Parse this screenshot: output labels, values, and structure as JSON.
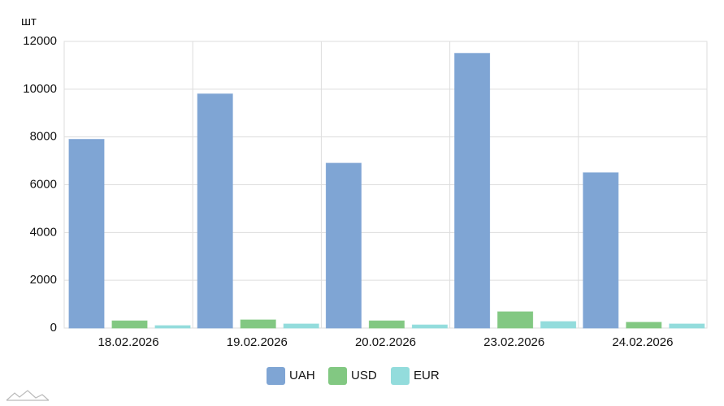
{
  "chart_data": {
    "type": "bar",
    "y_unit": "шт",
    "categories": [
      "18.02.2026",
      "19.02.2026",
      "20.02.2026",
      "23.02.2026",
      "24.02.2026"
    ],
    "series": [
      {
        "name": "UAH",
        "color": "#7fa5d4",
        "values": [
          7900,
          9800,
          6900,
          11500,
          6500
        ]
      },
      {
        "name": "USD",
        "color": "#82c882",
        "values": [
          300,
          340,
          300,
          680,
          240
        ]
      },
      {
        "name": "EUR",
        "color": "#93dcdc",
        "values": [
          100,
          170,
          130,
          270,
          170
        ]
      }
    ],
    "ylim": [
      0,
      12000
    ],
    "yticks": [
      0,
      2000,
      4000,
      6000,
      8000,
      10000,
      12000
    ],
    "grid": true,
    "legend": "bottom"
  }
}
